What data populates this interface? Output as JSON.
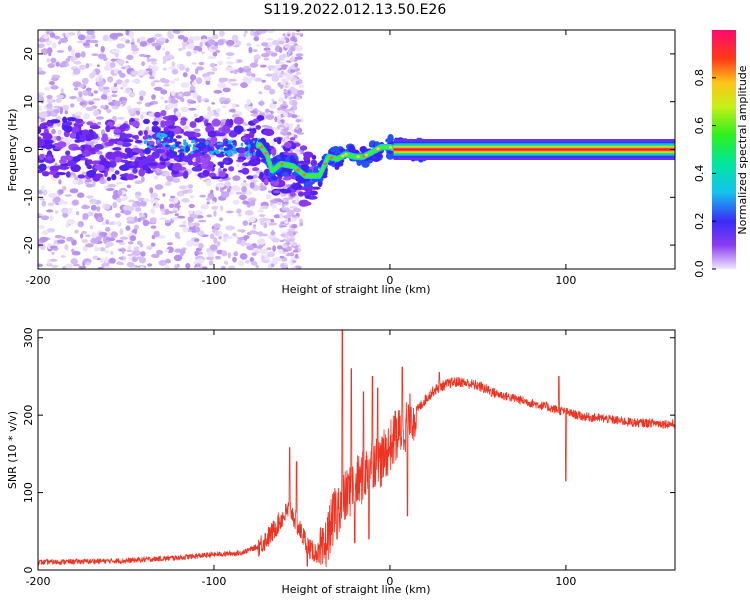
{
  "title": "S119.2022.012.13.50.E26",
  "colors": {
    "snr_line": "#ee3322",
    "axis": "#000000"
  },
  "chart_data": [
    {
      "type": "heatmap",
      "xlabel": "Height of straight line (km)",
      "ylabel": "Frequency (Hz)",
      "xlim": [
        -200,
        162
      ],
      "ylim": [
        -25,
        25
      ],
      "xticks": [
        -200,
        -100,
        0,
        100
      ],
      "yticks": [
        -20,
        -10,
        0,
        10,
        20
      ],
      "colorbar": {
        "label": "Normalized spectral amplitude",
        "range": [
          0,
          1
        ],
        "ticks": [
          "0.0",
          "0.2",
          "0.4",
          "0.6",
          "0.8"
        ],
        "colormap": "rainbow (violet-blue-cyan-green-yellow-orange-red-magenta)"
      },
      "ridge": [
        [
          -200,
          0
        ],
        [
          -180,
          0.5
        ],
        [
          -160,
          -0.5
        ],
        [
          -140,
          0.5
        ],
        [
          -130,
          2.5
        ],
        [
          -120,
          0
        ],
        [
          -110,
          1
        ],
        [
          -100,
          0
        ],
        [
          -90,
          0.5
        ],
        [
          -80,
          0
        ],
        [
          -74,
          1
        ],
        [
          -70,
          -1
        ],
        [
          -67,
          -4.5
        ],
        [
          -62,
          -3
        ],
        [
          -55,
          -3.5
        ],
        [
          -48,
          -5.5
        ],
        [
          -40,
          -5.5
        ],
        [
          -35,
          -1.5
        ],
        [
          -30,
          -2
        ],
        [
          -25,
          -1
        ],
        [
          -20,
          -1.5
        ],
        [
          -15,
          -1.5
        ],
        [
          -10,
          -0.5
        ],
        [
          -5,
          0.5
        ],
        [
          0,
          0.5
        ],
        [
          5,
          0
        ],
        [
          20,
          0
        ],
        [
          162,
          0
        ]
      ]
    },
    {
      "type": "line",
      "xlabel": "Height of straight line (km)",
      "ylabel": "SNR (10 * v/v)",
      "xlim": [
        -200,
        162
      ],
      "ylim": [
        0,
        310
      ],
      "xticks": [
        -200,
        -100,
        0,
        100
      ],
      "yticks": [
        0,
        100,
        200,
        300
      ],
      "envelope": [
        [
          -200,
          10
        ],
        [
          -150,
          12
        ],
        [
          -120,
          16
        ],
        [
          -100,
          20
        ],
        [
          -85,
          22
        ],
        [
          -75,
          30
        ],
        [
          -68,
          45
        ],
        [
          -62,
          65
        ],
        [
          -57,
          80
        ],
        [
          -52,
          55
        ],
        [
          -45,
          25
        ],
        [
          -38,
          20
        ],
        [
          -34,
          55
        ],
        [
          -30,
          80
        ],
        [
          -25,
          95
        ],
        [
          -20,
          110
        ],
        [
          -15,
          120
        ],
        [
          -10,
          140
        ],
        [
          -5,
          140
        ],
        [
          0,
          160
        ],
        [
          5,
          175
        ],
        [
          10,
          190
        ],
        [
          15,
          205
        ],
        [
          20,
          220
        ],
        [
          25,
          232
        ],
        [
          30,
          238
        ],
        [
          35,
          242
        ],
        [
          40,
          243
        ],
        [
          50,
          238
        ],
        [
          60,
          228
        ],
        [
          70,
          222
        ],
        [
          80,
          216
        ],
        [
          90,
          210
        ],
        [
          100,
          204
        ],
        [
          110,
          198
        ],
        [
          120,
          196
        ],
        [
          130,
          193
        ],
        [
          140,
          190
        ],
        [
          150,
          190
        ],
        [
          162,
          188
        ]
      ],
      "spikes": [
        [
          -57,
          158
        ],
        [
          -53,
          140
        ],
        [
          -27,
          310
        ],
        [
          -22,
          260
        ],
        [
          -15,
          230
        ],
        [
          -10,
          250
        ],
        [
          -7,
          235
        ],
        [
          3,
          205
        ],
        [
          7,
          262
        ],
        [
          12,
          210
        ],
        [
          28,
          255
        ],
        [
          96,
          250
        ]
      ],
      "dips": [
        [
          -47,
          5
        ],
        [
          -30,
          40
        ],
        [
          -20,
          35
        ],
        [
          -12,
          40
        ],
        [
          10,
          70
        ],
        [
          100,
          115
        ]
      ]
    }
  ]
}
